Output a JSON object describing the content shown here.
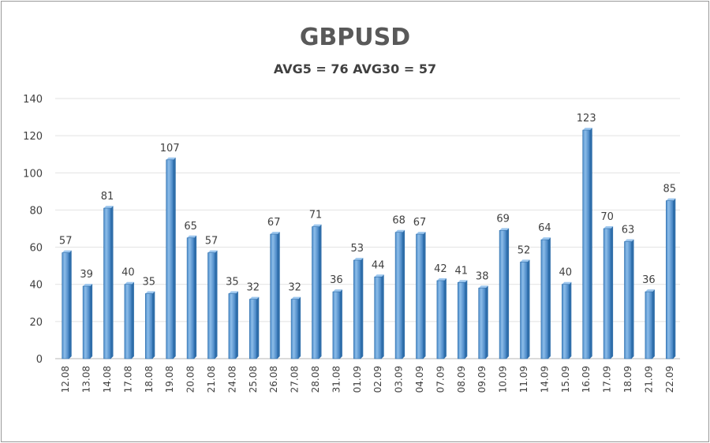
{
  "chart_data": {
    "type": "bar",
    "title": "GBPUSD",
    "subtitle": "AVG5 = 76 AVG30 = 57",
    "xlabel": "",
    "ylabel": "",
    "ylim": [
      0,
      140
    ],
    "y_ticks": [
      0,
      20,
      40,
      60,
      80,
      100,
      120,
      140
    ],
    "grid": true,
    "legend": "none",
    "bar_color": "#5b9bd5",
    "categories": [
      "12.08",
      "13.08",
      "14.08",
      "17.08",
      "18.08",
      "19.08",
      "20.08",
      "21.08",
      "24.08",
      "25.08",
      "26.08",
      "27.08",
      "28.08",
      "31.08",
      "01.09",
      "02.09",
      "03.09",
      "04.09",
      "07.09",
      "08.09",
      "09.09",
      "10.09",
      "11.09",
      "14.09",
      "15.09",
      "16.09",
      "17.09",
      "18.09",
      "21.09",
      "22.09"
    ],
    "values": [
      57,
      39,
      81,
      40,
      35,
      107,
      65,
      57,
      35,
      32,
      67,
      32,
      71,
      36,
      53,
      44,
      68,
      67,
      42,
      41,
      38,
      69,
      52,
      64,
      40,
      123,
      70,
      63,
      36,
      85
    ]
  }
}
